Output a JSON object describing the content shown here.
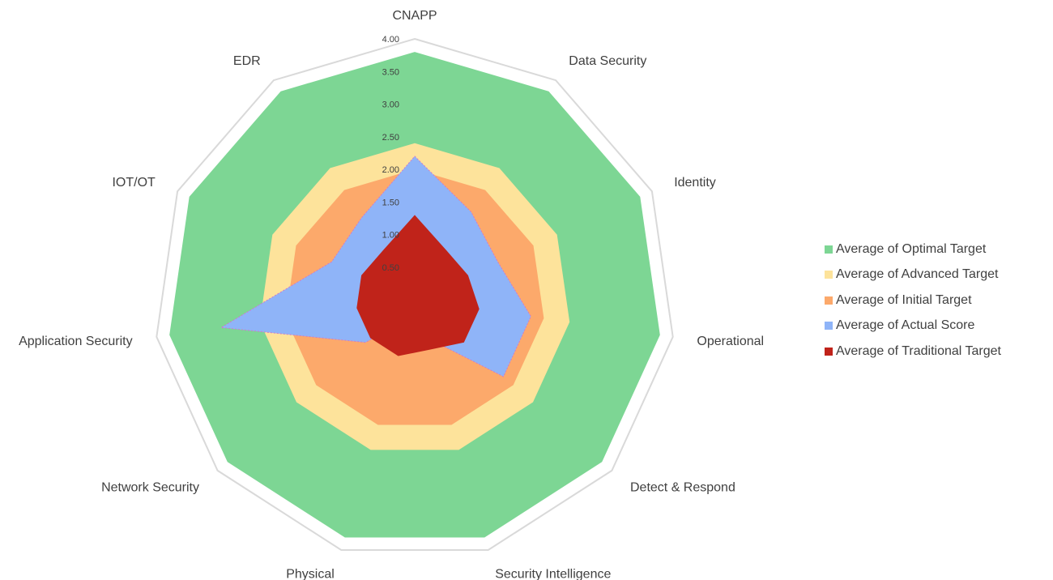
{
  "chart_data": {
    "type": "radar",
    "title": "",
    "categories": [
      "CNAPP",
      "Data Security",
      "Identity",
      "Operational",
      "Detect & Respond",
      "Security Intelligence",
      "Physical",
      "Network Security",
      "Application Security",
      "IOT/OT",
      "EDR"
    ],
    "rlim": [
      0,
      4
    ],
    "ticks": [
      "0.50",
      "1.00",
      "1.50",
      "2.00",
      "2.50",
      "3.00",
      "3.50",
      "4.00"
    ],
    "tick_values": [
      0.5,
      1,
      1.5,
      2,
      2.5,
      3,
      3.5,
      4
    ],
    "legend_position": "right",
    "series": [
      {
        "name": "Average of Optimal Target",
        "color": "#7dd694",
        "values": [
          3.8,
          3.8,
          3.8,
          3.8,
          3.8,
          3.8,
          3.8,
          3.8,
          3.8,
          3.8,
          3.8
        ]
      },
      {
        "name": "Average of Advanced Target",
        "color": "#fde39b",
        "values": [
          2.4,
          2.4,
          2.4,
          2.4,
          2.4,
          2.4,
          2.4,
          2.4,
          2.4,
          2.4,
          2.4
        ]
      },
      {
        "name": "Average of Initial Target",
        "color": "#fca96b",
        "values": [
          2.0,
          2.0,
          2.0,
          2.0,
          2.0,
          2.0,
          2.0,
          2.0,
          2.0,
          2.0,
          2.0
        ]
      },
      {
        "name": "Average of Actual Score",
        "color": "#8fb4f8",
        "values": [
          2.2,
          1.6,
          1.4,
          1.8,
          1.8,
          0.6,
          0.3,
          1.0,
          3.0,
          1.4,
          1.5
        ]
      },
      {
        "name": "Average of Traditional Target",
        "color": "#c0231a",
        "values": [
          1.3,
          0.9,
          0.9,
          1.0,
          1.0,
          0.8,
          0.9,
          0.9,
          0.9,
          0.9,
          0.9
        ]
      }
    ]
  },
  "colors": {
    "grid": "#d9d9d9",
    "text": "#404040",
    "actual_outline": "#d07ac8"
  }
}
